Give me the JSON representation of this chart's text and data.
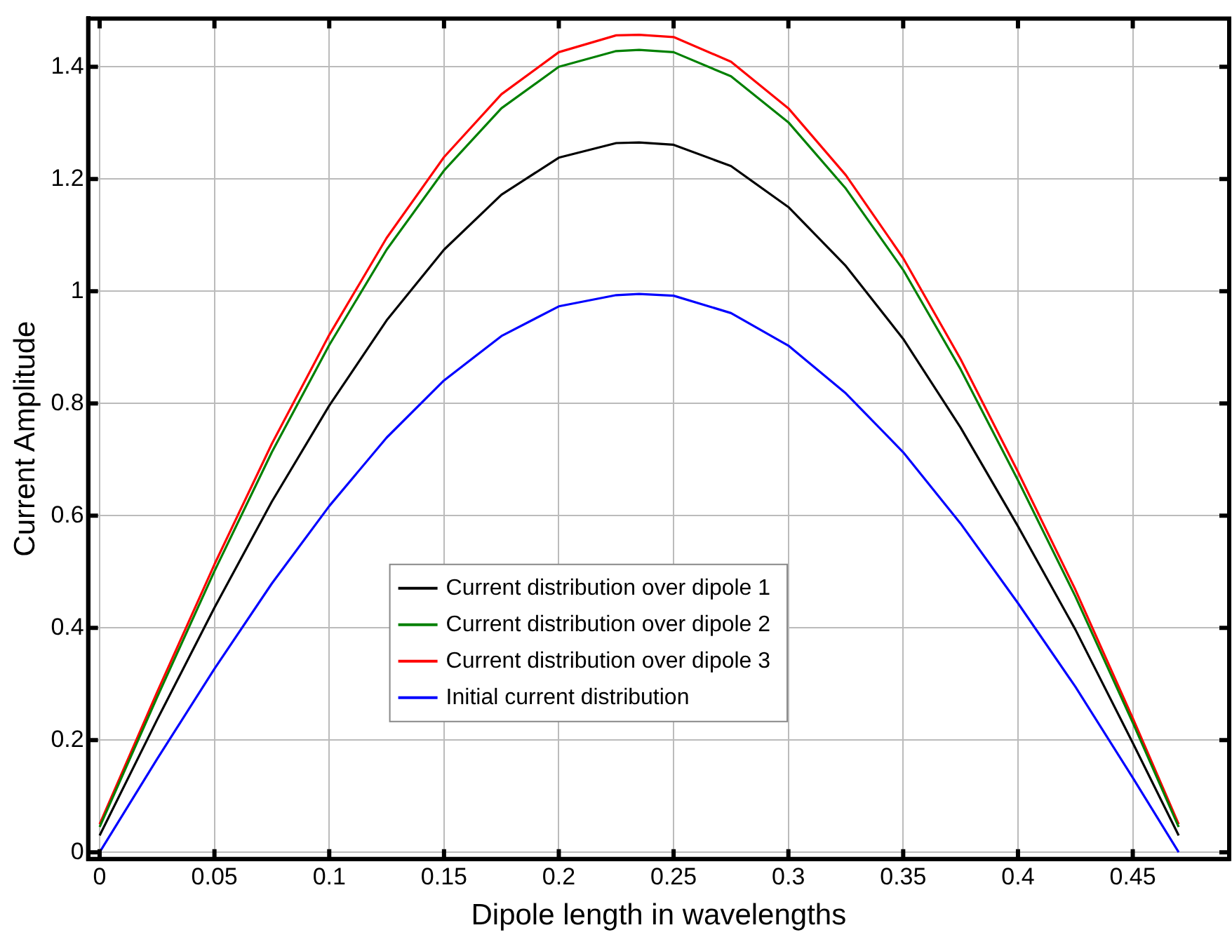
{
  "chart_data": {
    "type": "line",
    "xlabel": "Dipole length in wavelengths",
    "ylabel": "Current Amplitude",
    "x": [
      0,
      0.025,
      0.05,
      0.075,
      0.1,
      0.125,
      0.15,
      0.175,
      0.2,
      0.225,
      0.235,
      0.25,
      0.275,
      0.3,
      0.325,
      0.35,
      0.375,
      0.4,
      0.425,
      0.45,
      0.47
    ],
    "series": [
      {
        "name": "Current distribution over dipole 1",
        "color": "#000000",
        "values": [
          0.03,
          0.236,
          0.436,
          0.625,
          0.796,
          0.948,
          1.074,
          1.172,
          1.238,
          1.264,
          1.265,
          1.261,
          1.223,
          1.15,
          1.045,
          0.915,
          0.757,
          0.581,
          0.397,
          0.195,
          0.03
        ]
      },
      {
        "name": "Current distribution over dipole 2",
        "color": "#008000",
        "values": [
          0.045,
          0.276,
          0.501,
          0.713,
          0.904,
          1.074,
          1.215,
          1.326,
          1.4,
          1.428,
          1.43,
          1.426,
          1.383,
          1.301,
          1.183,
          1.038,
          0.861,
          0.663,
          0.456,
          0.231,
          0.045
        ]
      },
      {
        "name": "Current distribution over dipole 3",
        "color": "#ff0000",
        "values": [
          0.05,
          0.285,
          0.513,
          0.728,
          0.922,
          1.095,
          1.239,
          1.351,
          1.426,
          1.456,
          1.457,
          1.453,
          1.409,
          1.326,
          1.207,
          1.059,
          0.879,
          0.678,
          0.468,
          0.239,
          0.05
        ]
      },
      {
        "name": "Initial current distribution",
        "color": "#0000ff",
        "values": [
          0,
          0.166,
          0.327,
          0.479,
          0.617,
          0.739,
          0.841,
          0.92,
          0.973,
          0.993,
          0.995,
          0.992,
          0.961,
          0.903,
          0.818,
          0.713,
          0.586,
          0.444,
          0.295,
          0.133,
          0
        ]
      }
    ],
    "xlim": [
      -0.005,
      0.492
    ],
    "xticks": [
      0,
      0.05,
      0.1,
      0.15,
      0.2,
      0.25,
      0.3,
      0.35,
      0.4,
      0.45
    ],
    "ylim": [
      -0.012,
      1.486
    ],
    "yticks": [
      0,
      0.2,
      0.4,
      0.6,
      0.8,
      1,
      1.2,
      1.4
    ],
    "grid": true,
    "legend": "bottom",
    "marker": "none",
    "line_style": "solid"
  }
}
